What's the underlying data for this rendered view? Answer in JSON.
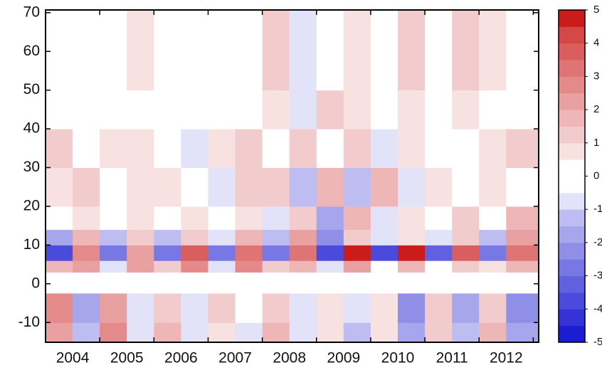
{
  "chart_data": {
    "type": "heatmap",
    "xlim": [
      2004,
      2013.1
    ],
    "ylim": [
      -15.1,
      70.7
    ],
    "xticks": [
      {
        "value": 2004.5,
        "label": "2004"
      },
      {
        "value": 2005.5,
        "label": "2005"
      },
      {
        "value": 2006.5,
        "label": "2006"
      },
      {
        "value": 2007.5,
        "label": "2007"
      },
      {
        "value": 2008.5,
        "label": "2008"
      },
      {
        "value": 2009.5,
        "label": "2009"
      },
      {
        "value": 2010.5,
        "label": "2010"
      },
      {
        "value": 2011.5,
        "label": "2011"
      },
      {
        "value": 2012.5,
        "label": "2012"
      }
    ],
    "xminorticks": [
      2005,
      2006,
      2007,
      2008,
      2009,
      2010,
      2011,
      2012,
      2013
    ],
    "yticks": [
      -10,
      0,
      10,
      20,
      30,
      40,
      50,
      60,
      70
    ],
    "x_edges": [
      2004,
      2004.5,
      2005,
      2005.5,
      2006,
      2006.5,
      2007,
      2007.5,
      2008,
      2008.5,
      2009,
      2009.5,
      2010,
      2010.5,
      2011,
      2011.5,
      2012,
      2012.5,
      2013.1
    ],
    "y_edges": [
      -15.1,
      -10,
      -2.5,
      3,
      6,
      10,
      14,
      20,
      30,
      40,
      50,
      70.7
    ],
    "z": [
      [
        2,
        -1.5,
        2.5,
        -1,
        1.5,
        -1,
        0.5,
        -1,
        1.5,
        -1,
        0.5,
        -1.5,
        0.5,
        -2,
        1,
        -1.5,
        1.5,
        -2
      ],
      [
        2.5,
        -2,
        2,
        -1,
        1,
        -1,
        1,
        -0.5,
        1,
        -1,
        0.5,
        -1,
        0.5,
        -2.5,
        1,
        -2,
        1,
        -2.5
      ],
      [
        null,
        null,
        null,
        null,
        null,
        null,
        null,
        null,
        null,
        null,
        null,
        null,
        null,
        null,
        null,
        null,
        null,
        null
      ],
      [
        1.5,
        2,
        -1,
        2,
        1,
        2.5,
        -1,
        2.5,
        1,
        1.5,
        -1,
        2,
        -0.5,
        1.5,
        -0.5,
        1,
        0.5,
        1.5
      ],
      [
        -4,
        2.5,
        -3,
        2,
        -3,
        3.5,
        -3,
        3,
        -3,
        3,
        -4,
        4.5,
        -4,
        4.5,
        -3.5,
        3.5,
        -3,
        3
      ],
      [
        -2,
        1.5,
        -1.5,
        1,
        -1.5,
        1,
        -1,
        1.5,
        -1.5,
        2,
        -2.5,
        1,
        -1,
        0.5,
        -1,
        1,
        -1.5,
        2
      ],
      [
        -0.5,
        0.5,
        -0.5,
        0.5,
        0,
        0.5,
        -0.5,
        0.5,
        -1,
        1,
        -2,
        1.5,
        -1,
        0.5,
        0,
        1,
        -0.5,
        1.5
      ],
      [
        0.5,
        1,
        -0.5,
        0.5,
        0.5,
        -0.5,
        -1,
        1,
        1,
        -1.5,
        1.5,
        -1.5,
        1.5,
        -1,
        0.5,
        0,
        0.5,
        -0.5
      ],
      [
        1,
        -0.5,
        0.5,
        0.5,
        -0.5,
        -1,
        0.5,
        1,
        -0.5,
        1,
        -0.5,
        1,
        -1,
        0.5,
        -0.5,
        0,
        0.5,
        1
      ],
      [
        0,
        0,
        0,
        0,
        0,
        0,
        0,
        -0.5,
        0.5,
        -1,
        1,
        0.5,
        -0.5,
        0.5,
        -0.5,
        0.5,
        0,
        -0.5
      ],
      [
        0,
        0,
        0,
        0.5,
        0,
        0,
        0,
        0,
        1,
        -1,
        0,
        0.5,
        -0.5,
        1,
        -0.5,
        1,
        0.5,
        0
      ]
    ],
    "colorbar": {
      "levels": [
        -5,
        -4.5,
        -4,
        -3.5,
        -3,
        -2.5,
        -2,
        -1.5,
        -1,
        -0.5,
        0,
        0.5,
        1,
        1.5,
        2,
        2.5,
        3,
        3.5,
        4,
        4.5,
        5
      ],
      "colors": [
        "#1c1cd2",
        "#3333d6",
        "#4a4adb",
        "#6161df",
        "#7878e4",
        "#8f8fe8",
        "#a6a6ed",
        "#bdbdf1",
        "#e2e2f8",
        "#ffffff",
        "#ffffff",
        "#f7e1e1",
        "#f2cccc",
        "#eeb6b6",
        "#e9a0a0",
        "#e48a8a",
        "#df7474",
        "#da5e5e",
        "#d54848",
        "#cb1c1c"
      ],
      "ticks": [
        -5,
        -4,
        -3,
        -2,
        -1,
        0,
        1,
        2,
        3,
        4,
        5
      ]
    }
  }
}
